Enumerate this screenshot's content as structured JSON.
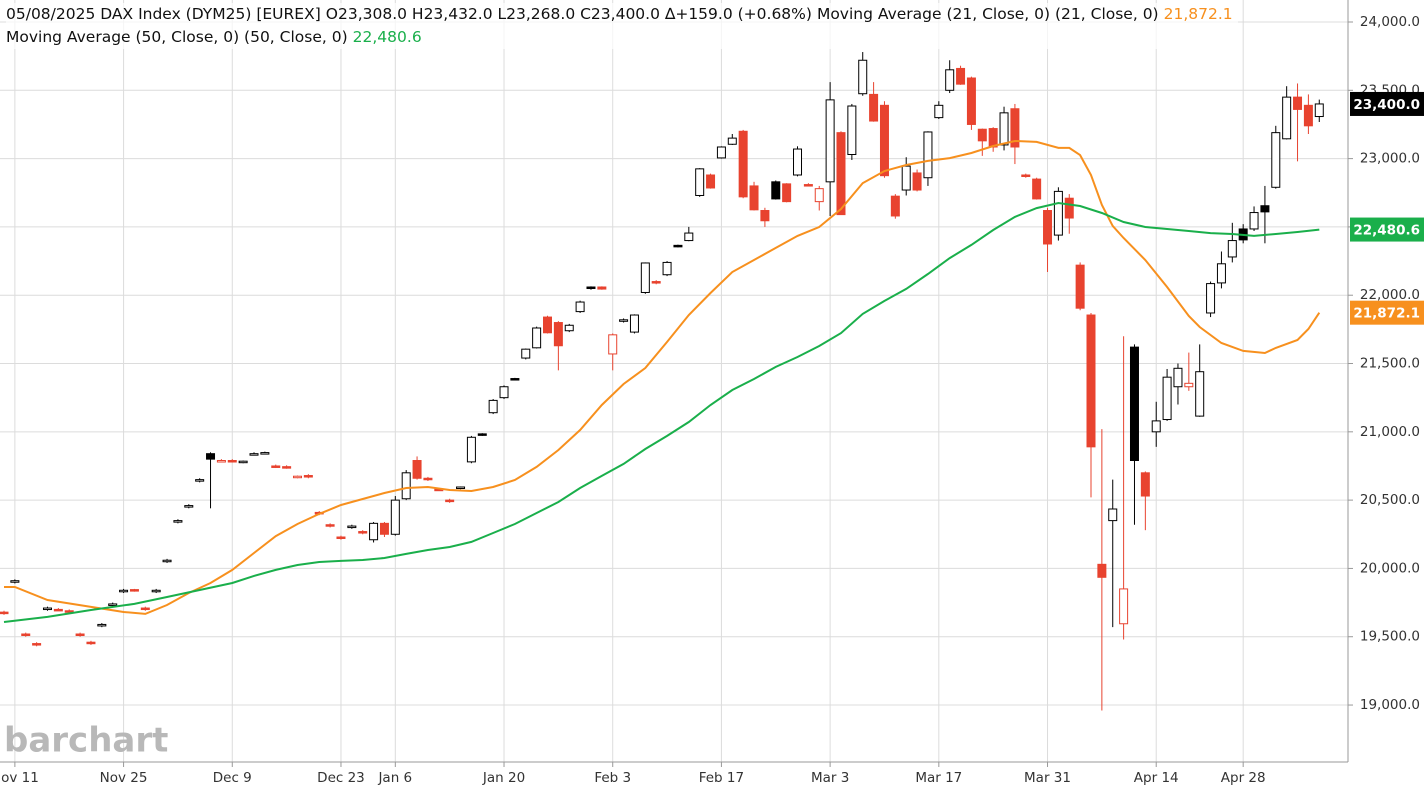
{
  "chart_data": {
    "type": "candlestick",
    "title": "05/08/2025 DAX Index (DYM25) [EUREX]",
    "ohlc_text": "O23,308.0 H23,432.0 L23,268.0 C23,400.0",
    "change_text": "∆+159.0 (+0.68%)",
    "last_label": "23,400.0",
    "watermark": "barchart",
    "up_color": "#000000",
    "down_color": "#e8432f",
    "grid": true,
    "ylim": [
      18583,
      24161
    ],
    "yticks": [
      {
        "value": 19000,
        "label": "19,000.0"
      },
      {
        "value": 19500,
        "label": "19,500.0"
      },
      {
        "value": 20000,
        "label": "20,000.0"
      },
      {
        "value": 20500,
        "label": "20,500.0"
      },
      {
        "value": 21000,
        "label": "21,000.0"
      },
      {
        "value": 21500,
        "label": "21,500.0"
      },
      {
        "value": 22000,
        "label": "22,000.0"
      },
      {
        "value": 22500,
        "label": "22,500.0"
      },
      {
        "value": 23000,
        "label": "23,000.0"
      },
      {
        "value": 23500,
        "label": "23,500.0"
      },
      {
        "value": 24000,
        "label": "24,000.0"
      }
    ],
    "categories": [
      null,
      "Nov 11",
      null,
      null,
      null,
      null,
      null,
      null,
      null,
      null,
      null,
      "Nov 25",
      null,
      null,
      null,
      null,
      null,
      null,
      null,
      null,
      null,
      "Dec 9",
      null,
      null,
      null,
      null,
      null,
      null,
      null,
      null,
      null,
      "Dec 23",
      null,
      null,
      null,
      null,
      "Jan 6",
      null,
      null,
      null,
      null,
      null,
      null,
      null,
      null,
      null,
      "Jan 20",
      null,
      null,
      null,
      null,
      null,
      null,
      null,
      null,
      null,
      "Feb 3",
      null,
      null,
      null,
      null,
      null,
      null,
      null,
      null,
      null,
      "Feb 17",
      null,
      null,
      null,
      null,
      null,
      null,
      null,
      null,
      null,
      "Mar 3",
      null,
      null,
      null,
      null,
      null,
      null,
      null,
      null,
      null,
      "Mar 17",
      null,
      null,
      null,
      null,
      null,
      null,
      null,
      null,
      null,
      "Mar 31",
      null,
      null,
      null,
      null,
      null,
      null,
      null,
      null,
      null,
      "Apr 14",
      null,
      null,
      null,
      null,
      null,
      null,
      null,
      "Apr 28",
      null,
      null,
      null,
      null,
      null,
      null,
      null
    ],
    "ohlc": [
      [
        19680,
        19690,
        19660,
        19670
      ],
      [
        19900,
        19920,
        19890,
        19910
      ],
      [
        19520,
        19530,
        19500,
        19510
      ],
      [
        19450,
        19460,
        19430,
        19440
      ],
      [
        19700,
        19720,
        19690,
        19710
      ],
      [
        19700,
        19710,
        19690,
        19695
      ],
      [
        19690,
        19700,
        19670,
        19680
      ],
      [
        19520,
        19530,
        19500,
        19510
      ],
      [
        19460,
        19470,
        19440,
        19450
      ],
      [
        19580,
        19600,
        19570,
        19590
      ],
      [
        19730,
        19750,
        19720,
        19740
      ],
      [
        19830,
        19850,
        19820,
        19840
      ],
      [
        19845,
        19850,
        19830,
        19838
      ],
      [
        19710,
        19720,
        19690,
        19700
      ],
      [
        19830,
        19850,
        19820,
        19840
      ],
      [
        20050,
        20070,
        20040,
        20060
      ],
      [
        20340,
        20360,
        20330,
        20350
      ],
      [
        20450,
        20470,
        20440,
        20460
      ],
      [
        20640,
        20660,
        20630,
        20650
      ],
      [
        20840,
        20850,
        20440,
        20800
      ],
      [
        20790,
        20800,
        20780,
        20790
      ],
      [
        20790,
        20800,
        20775,
        20780
      ],
      [
        20775,
        20790,
        20770,
        20785
      ],
      [
        20835,
        20850,
        20830,
        20840
      ],
      [
        20840,
        20855,
        20835,
        20848
      ],
      [
        20750,
        20760,
        20735,
        20740
      ],
      [
        20745,
        20755,
        20730,
        20735
      ],
      [
        20670,
        20680,
        20660,
        20675
      ],
      [
        20680,
        20690,
        20660,
        20670
      ],
      [
        20410,
        20420,
        20390,
        20400
      ],
      [
        20320,
        20330,
        20300,
        20310
      ],
      [
        20230,
        20240,
        20210,
        20220
      ],
      [
        20300,
        20320,
        20290,
        20310
      ],
      [
        20270,
        20280,
        20250,
        20260
      ],
      [
        20210,
        20340,
        20190,
        20330
      ],
      [
        20330,
        20340,
        20230,
        20250
      ],
      [
        20250,
        20530,
        20240,
        20500
      ],
      [
        20510,
        20720,
        20500,
        20700
      ],
      [
        20790,
        20820,
        20650,
        20660
      ],
      [
        20660,
        20670,
        20640,
        20650
      ],
      [
        20580,
        20590,
        20570,
        20575
      ],
      [
        20500,
        20510,
        20480,
        20490
      ],
      [
        20590,
        20600,
        20580,
        20596
      ],
      [
        20780,
        20970,
        20770,
        20960
      ],
      [
        20985,
        20990,
        20970,
        20977
      ],
      [
        21140,
        21240,
        21130,
        21230
      ],
      [
        21250,
        21340,
        21240,
        21330
      ],
      [
        21390,
        21395,
        21380,
        21387
      ],
      [
        21540,
        21610,
        21530,
        21605
      ],
      [
        21615,
        21770,
        21610,
        21760
      ],
      [
        21840,
        21850,
        21720,
        21725
      ],
      [
        21800,
        21810,
        21450,
        21630
      ],
      [
        21740,
        21790,
        21730,
        21780
      ],
      [
        21880,
        21960,
        21870,
        21950
      ],
      [
        22060,
        22065,
        22040,
        22053
      ],
      [
        22060,
        22065,
        22040,
        22045
      ],
      [
        21570,
        21720,
        21450,
        21710
      ],
      [
        21810,
        21830,
        21800,
        21820
      ],
      [
        21730,
        21860,
        21720,
        21855
      ],
      [
        22020,
        22240,
        22010,
        22236
      ],
      [
        22100,
        22110,
        22080,
        22090
      ],
      [
        22150,
        22250,
        22140,
        22240
      ],
      [
        22365,
        22370,
        22350,
        22360
      ],
      [
        22400,
        22500,
        22395,
        22455
      ],
      [
        22730,
        22930,
        22720,
        22925
      ],
      [
        22880,
        22890,
        22780,
        22785
      ],
      [
        23005,
        23090,
        23000,
        23085
      ],
      [
        23105,
        23180,
        23100,
        23150
      ],
      [
        23200,
        23210,
        22710,
        22720
      ],
      [
        22800,
        22830,
        22620,
        22625
      ],
      [
        22620,
        22640,
        22500,
        22545
      ],
      [
        22830,
        22840,
        22700,
        22705
      ],
      [
        22815,
        22820,
        22680,
        22685
      ],
      [
        22880,
        23090,
        22870,
        23070
      ],
      [
        22810,
        22820,
        22800,
        22805
      ],
      [
        22685,
        22800,
        22620,
        22780
      ],
      [
        22830,
        23560,
        22580,
        23430
      ],
      [
        23190,
        23200,
        22590,
        22590
      ],
      [
        23030,
        23400,
        22990,
        23385
      ],
      [
        23475,
        23780,
        23460,
        23720
      ],
      [
        23470,
        23560,
        23270,
        23275
      ],
      [
        23390,
        23420,
        22860,
        22875
      ],
      [
        22725,
        22740,
        22560,
        22580
      ],
      [
        22770,
        23010,
        22730,
        22945
      ],
      [
        22895,
        22920,
        22760,
        22770
      ],
      [
        22860,
        23200,
        22800,
        23195
      ],
      [
        23300,
        23420,
        23290,
        23390
      ],
      [
        23500,
        23720,
        23480,
        23650
      ],
      [
        23660,
        23680,
        23540,
        23545
      ],
      [
        23590,
        23600,
        23210,
        23250
      ],
      [
        23215,
        23220,
        23020,
        23130
      ],
      [
        23220,
        23230,
        23050,
        23085
      ],
      [
        23100,
        23380,
        23060,
        23335
      ],
      [
        23365,
        23400,
        22960,
        23085
      ],
      [
        22880,
        22890,
        22860,
        22870
      ],
      [
        22850,
        22860,
        22700,
        22705
      ],
      [
        22620,
        22640,
        22170,
        22375
      ],
      [
        22440,
        22790,
        22400,
        22760
      ],
      [
        22710,
        22740,
        22450,
        22565
      ],
      [
        22220,
        22240,
        21890,
        21905
      ],
      [
        21855,
        21870,
        20520,
        20890
      ],
      [
        20030,
        21020,
        18960,
        19935
      ],
      [
        20350,
        20650,
        19570,
        20435
      ],
      [
        19595,
        21700,
        19480,
        19850
      ],
      [
        21620,
        21640,
        20320,
        20790
      ],
      [
        20700,
        20710,
        20280,
        20530
      ],
      [
        21000,
        21220,
        20890,
        21080
      ],
      [
        21090,
        21460,
        21080,
        21400
      ],
      [
        21330,
        21500,
        21200,
        21465
      ],
      [
        21330,
        21580,
        21300,
        21355
      ],
      [
        21115,
        21640,
        21110,
        21440
      ],
      [
        21870,
        22100,
        21840,
        22085
      ],
      [
        22090,
        22320,
        22050,
        22230
      ],
      [
        22280,
        22530,
        22240,
        22400
      ],
      [
        22485,
        22520,
        22380,
        22405
      ],
      [
        22485,
        22650,
        22470,
        22605
      ],
      [
        22655,
        22800,
        22380,
        22610
      ],
      [
        22790,
        23240,
        22780,
        23190
      ],
      [
        23145,
        23530,
        23140,
        23450
      ],
      [
        23450,
        23550,
        22980,
        23360
      ],
      [
        23390,
        23470,
        23180,
        23240
      ],
      [
        23308,
        23432,
        23268,
        23400
      ]
    ],
    "series": [
      {
        "name": "Moving Average (21, Close, 0)  (21, Close, 0)",
        "color": "#f7901e",
        "last_label": "21,872.1",
        "x": [
          0,
          1,
          4,
          8,
          11,
          13,
          15,
          17,
          19,
          21,
          23,
          25,
          27,
          29,
          31,
          33,
          35,
          37,
          39,
          41,
          43,
          45,
          47,
          49,
          51,
          53,
          55,
          57,
          59,
          61,
          63,
          65,
          67,
          69,
          71,
          73,
          75,
          77,
          79,
          81,
          83,
          85,
          87,
          89,
          91,
          93,
          95,
          97,
          98,
          99,
          100,
          101,
          102,
          103,
          105,
          107,
          109,
          110,
          112,
          114,
          116,
          117,
          119,
          120,
          121
        ],
        "values": [
          19864,
          19864,
          19769,
          19718,
          19681,
          19667,
          19732,
          19820,
          19893,
          19989,
          20113,
          20237,
          20325,
          20399,
          20464,
          20508,
          20552,
          20589,
          20596,
          20574,
          20567,
          20596,
          20647,
          20743,
          20867,
          21013,
          21196,
          21350,
          21467,
          21658,
          21855,
          22016,
          22170,
          22258,
          22346,
          22434,
          22499,
          22631,
          22821,
          22909,
          22953,
          22983,
          23004,
          23041,
          23092,
          23129,
          23122,
          23078,
          23078,
          23026,
          22880,
          22660,
          22507,
          22419,
          22258,
          22060,
          21848,
          21767,
          21650,
          21592,
          21577,
          21614,
          21672,
          21753,
          21872.1
        ]
      },
      {
        "name": "Moving Average (50, Close, 0)  (50, Close, 0)",
        "color": "#1aaf4b",
        "last_label": "22,480.6",
        "x": [
          0,
          4,
          8,
          12,
          15,
          18,
          21,
          23,
          25,
          27,
          29,
          31,
          33,
          35,
          37,
          39,
          41,
          43,
          45,
          47,
          49,
          51,
          53,
          55,
          57,
          59,
          61,
          63,
          65,
          67,
          69,
          71,
          73,
          75,
          77,
          79,
          81,
          83,
          85,
          87,
          89,
          91,
          93,
          95,
          97,
          99,
          101,
          103,
          105,
          107,
          109,
          111,
          113,
          115,
          117,
          119,
          121
        ],
        "values": [
          19608,
          19645,
          19696,
          19740,
          19791,
          19842,
          19893,
          19945,
          19989,
          20025,
          20047,
          20055,
          20062,
          20076,
          20106,
          20135,
          20157,
          20194,
          20259,
          20325,
          20406,
          20486,
          20589,
          20677,
          20765,
          20874,
          20970,
          21072,
          21196,
          21306,
          21387,
          21475,
          21548,
          21628,
          21723,
          21863,
          21958,
          22046,
          22155,
          22272,
          22368,
          22477,
          22573,
          22638,
          22675,
          22653,
          22602,
          22536,
          22499,
          22485,
          22470,
          22455,
          22448,
          22434,
          22448,
          22463,
          22480.6
        ]
      }
    ]
  }
}
